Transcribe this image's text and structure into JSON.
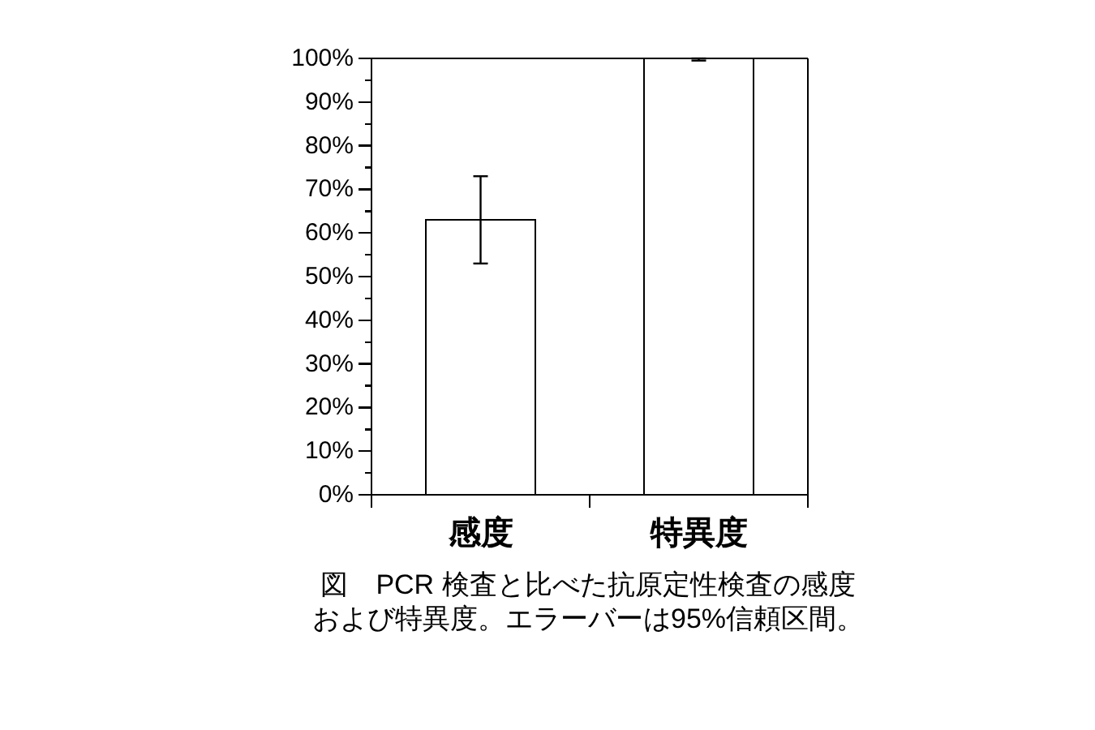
{
  "chart_data": {
    "type": "bar",
    "categories": [
      "感度",
      "特異度"
    ],
    "values": [
      63,
      100
    ],
    "errors": [
      [
        53,
        73
      ],
      [
        99.5,
        100
      ]
    ],
    "color": "#ffffff",
    "ylim": [
      0,
      100
    ],
    "yticks": [
      {
        "value": 0,
        "label": "0%"
      },
      {
        "value": 5,
        "label": null
      },
      {
        "value": 10,
        "label": "10%"
      },
      {
        "value": 15,
        "label": null
      },
      {
        "value": 20,
        "label": "20%"
      },
      {
        "value": 25,
        "label": null
      },
      {
        "value": 30,
        "label": "30%"
      },
      {
        "value": 35,
        "label": null
      },
      {
        "value": 40,
        "label": "40%"
      },
      {
        "value": 45,
        "label": null
      },
      {
        "value": 50,
        "label": "50%"
      },
      {
        "value": 55,
        "label": null
      },
      {
        "value": 60,
        "label": "60%"
      },
      {
        "value": 65,
        "label": null
      },
      {
        "value": 70,
        "label": "70%"
      },
      {
        "value": 75,
        "label": null
      },
      {
        "value": 80,
        "label": "80%"
      },
      {
        "value": 85,
        "label": null
      },
      {
        "value": 90,
        "label": "90%"
      },
      {
        "value": 95,
        "label": null
      },
      {
        "value": 100,
        "label": "100%"
      }
    ],
    "annotations": [
      "図　PCR 検査と比べた抗原定性検査の感度",
      "および特異度。エラーバーは95%信頼区間。"
    ]
  }
}
